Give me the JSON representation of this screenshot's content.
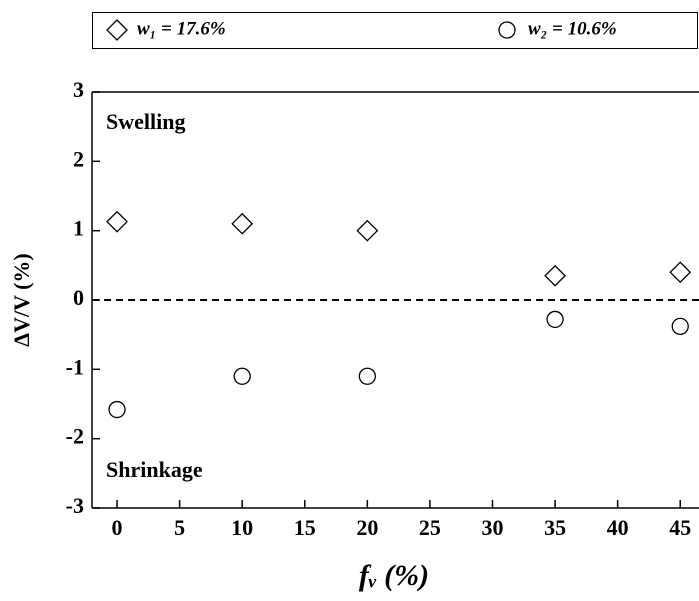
{
  "chart_data": {
    "type": "scatter",
    "x_label": "fᵥ (%)",
    "y_label": "ΔV/V (%)",
    "annotations": [
      "Swelling",
      "Shrinkage"
    ],
    "series": [
      {
        "name": "w₁ = 17.6%",
        "marker": "diamond",
        "color": "#000000",
        "x": [
          0,
          10,
          20,
          35,
          45
        ],
        "values": [
          1.13,
          1.1,
          1.0,
          0.35,
          0.4
        ]
      },
      {
        "name": "w₂ = 10.6%",
        "marker": "circle",
        "color": "#000000",
        "x": [
          0,
          10,
          20,
          35,
          45
        ],
        "values": [
          -1.58,
          -1.1,
          -1.1,
          -0.28,
          -0.38
        ]
      }
    ],
    "xlim": [
      -2,
      46.5
    ],
    "ylim": [
      -3,
      3
    ],
    "xticks": [
      0,
      5,
      10,
      15,
      20,
      25,
      30,
      35,
      40,
      45
    ],
    "yticks": [
      -3,
      -2,
      -1,
      0,
      1,
      2,
      3
    ],
    "reference_line": 0,
    "legend": "top"
  }
}
